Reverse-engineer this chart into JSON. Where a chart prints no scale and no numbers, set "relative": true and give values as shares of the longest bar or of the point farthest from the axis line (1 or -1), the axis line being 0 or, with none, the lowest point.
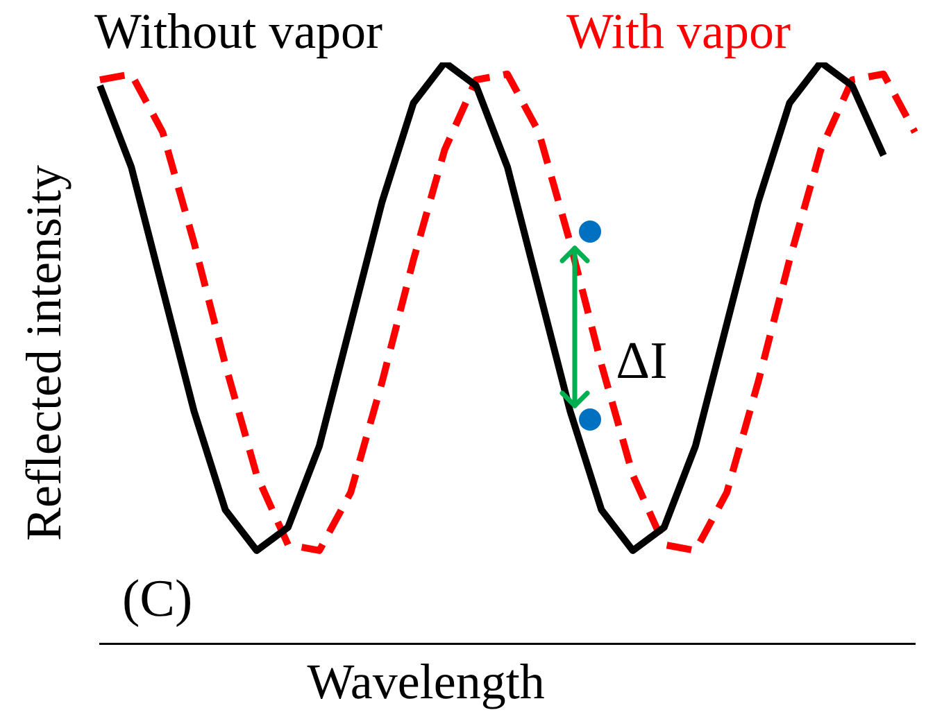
{
  "chart_data": {
    "type": "line",
    "relative": true,
    "xlabel": "Wavelength",
    "ylabel": "Reflected intensity",
    "marker": "none",
    "legend": false,
    "grid": false,
    "categories": [
      null,
      null,
      null,
      null,
      null,
      null,
      null,
      null,
      null,
      null,
      null,
      null,
      null,
      null,
      null,
      null,
      null,
      null,
      null,
      null,
      null,
      null,
      null,
      null,
      null,
      null,
      null
    ],
    "series": [
      {
        "name": "Without vapor",
        "color": "#000000",
        "line_style": "solid",
        "values": [
          0.96,
          0.82,
          0.61,
          0.4,
          0.23,
          0.16,
          0.2,
          0.34,
          0.55,
          0.76,
          0.93,
          1.0,
          0.96,
          0.82,
          0.61,
          0.4,
          0.23,
          0.16,
          0.2,
          0.34,
          0.55,
          0.76,
          0.93,
          1.0,
          0.96,
          0.84,
          null
        ]
      },
      {
        "name": "With vapor",
        "color": "#ff0000",
        "line_style": "dashed",
        "values": [
          0.97,
          0.98,
          0.88,
          0.69,
          0.48,
          0.29,
          0.17,
          0.16,
          0.26,
          0.45,
          0.66,
          0.85,
          0.97,
          0.98,
          0.88,
          0.69,
          0.48,
          0.29,
          0.17,
          0.16,
          0.26,
          0.45,
          0.66,
          0.85,
          0.97,
          0.98,
          0.88
        ]
      }
    ],
    "annotations": [
      "ΔI",
      "(C)"
    ]
  }
}
